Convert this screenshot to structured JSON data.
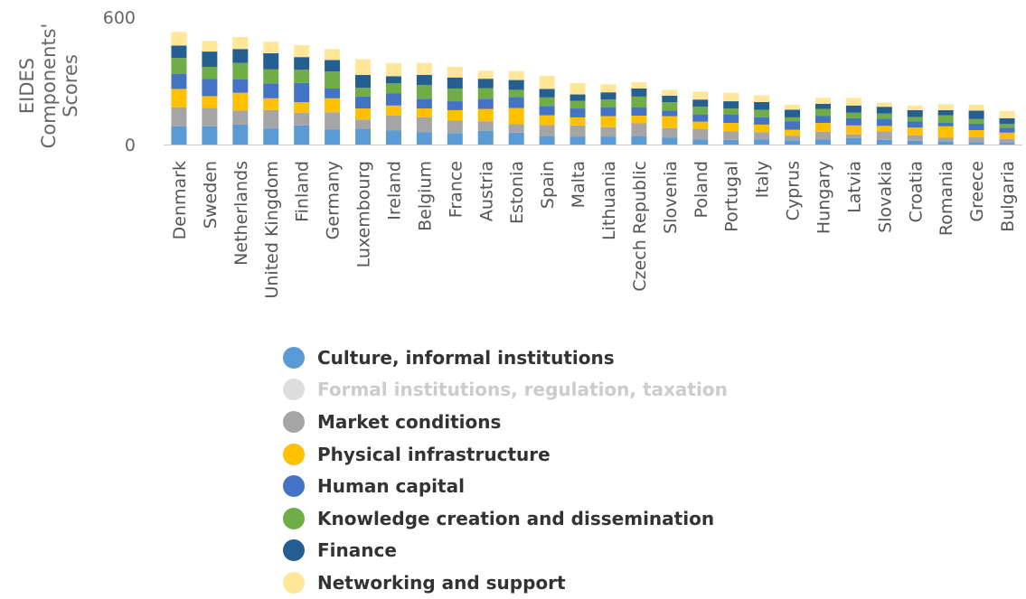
{
  "chart_data": {
    "type": "bar",
    "stacked": true,
    "title": "",
    "xlabel": "",
    "ylabel": "EIDES Components' Scores",
    "ylabel_lines": [
      "EIDES",
      "Components'",
      "Scores"
    ],
    "ylim": [
      0,
      600
    ],
    "yticks": [
      "600",
      "0"
    ],
    "grid": false,
    "legend_position": "bottom",
    "categories": [
      "Denmark",
      "Sweden",
      "Netherlands",
      "United Kingdom",
      "Finland",
      "Germany",
      "Luxembourg",
      "Ireland",
      "Belgium",
      "France",
      "Austria",
      "Estonia",
      "Spain",
      "Malta",
      "Lithuania",
      "Czech Republic",
      "Slovenia",
      "Poland",
      "Portugal",
      "Italy",
      "Cyprus",
      "Hungary",
      "Latvia",
      "Slovakia",
      "Croatia",
      "Romania",
      "Greece",
      "Bulgaria"
    ],
    "series": [
      {
        "name": "Culture, informal institutions",
        "color": "#5b9bd5",
        "visible": true,
        "values": [
          86,
          86,
          94,
          76,
          90,
          72,
          74,
          66,
          58,
          54,
          64,
          56,
          40,
          38,
          38,
          40,
          32,
          24,
          22,
          24,
          20,
          24,
          30,
          22,
          18,
          16,
          12,
          8
        ]
      },
      {
        "name": "Formal institutions, regulation, taxation",
        "color": "#d9d9d9",
        "visible": false,
        "values": [
          0,
          0,
          0,
          0,
          0,
          0,
          0,
          0,
          0,
          0,
          0,
          0,
          0,
          0,
          0,
          0,
          0,
          0,
          0,
          0,
          0,
          0,
          0,
          0,
          0,
          0,
          0,
          0
        ]
      },
      {
        "name": "Market conditions",
        "color": "#a5a5a5",
        "visible": true,
        "values": [
          90,
          86,
          66,
          86,
          60,
          80,
          44,
          70,
          70,
          60,
          46,
          40,
          52,
          52,
          44,
          60,
          46,
          50,
          40,
          34,
          22,
          36,
          18,
          40,
          26,
          16,
          22,
          18
        ]
      },
      {
        "name": "Physical infrastructure",
        "color": "#ffc000",
        "visible": true,
        "values": [
          86,
          56,
          84,
          56,
          50,
          66,
          52,
          48,
          42,
          48,
          58,
          76,
          46,
          38,
          52,
          36,
          56,
          34,
          40,
          36,
          28,
          42,
          42,
          26,
          36,
          54,
          34,
          30
        ]
      },
      {
        "name": "Human capital",
        "color": "#4472c4",
        "visible": true,
        "values": [
          70,
          82,
          64,
          70,
          90,
          46,
          56,
          58,
          46,
          42,
          48,
          52,
          44,
          42,
          42,
          40,
          26,
          34,
          40,
          34,
          40,
          32,
          34,
          34,
          30,
          16,
          30,
          24
        ]
      },
      {
        "name": "Knowledge creation and dissemination",
        "color": "#70ad47",
        "visible": true,
        "values": [
          76,
          56,
          76,
          66,
          62,
          80,
          42,
          46,
          64,
          60,
          50,
          34,
          40,
          36,
          36,
          50,
          40,
          36,
          28,
          36,
          18,
          34,
          26,
          24,
          20,
          36,
          22,
          18
        ]
      },
      {
        "name": "Finance",
        "color": "#255e91",
        "visible": true,
        "values": [
          58,
          72,
          66,
          76,
          60,
          54,
          60,
          34,
          48,
          52,
          44,
          46,
          40,
          30,
          34,
          38,
          30,
          34,
          34,
          36,
          36,
          24,
          34,
          32,
          32,
          24,
          40,
          26
        ]
      },
      {
        "name": "Networking and support",
        "color": "#ffe699",
        "visible": true,
        "values": [
          64,
          50,
          56,
          54,
          56,
          52,
          74,
          62,
          56,
          50,
          38,
          42,
          62,
          54,
          38,
          30,
          28,
          38,
          40,
          32,
          24,
          28,
          36,
          20,
          22,
          28,
          28,
          34
        ]
      }
    ]
  }
}
